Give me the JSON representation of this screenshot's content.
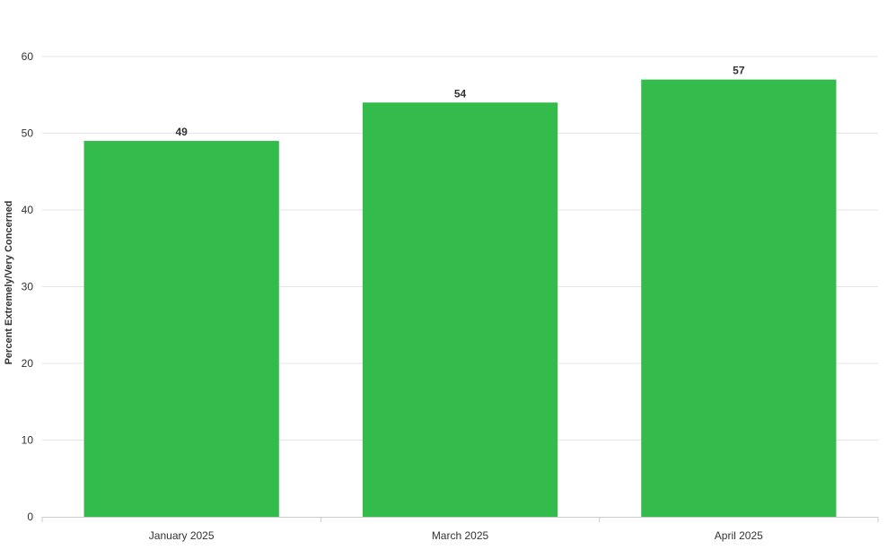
{
  "chart_data": {
    "type": "bar",
    "title": "",
    "xlabel": "",
    "ylabel": "Percent Extremely/Very Concerned",
    "categories": [
      "January 2025",
      "March 2025",
      "April 2025"
    ],
    "values": [
      49,
      54,
      57
    ],
    "ylim": [
      0,
      60
    ],
    "yticks": [
      0,
      10,
      20,
      30,
      40,
      50,
      60
    ],
    "grid": true,
    "legend": "none",
    "colors": {
      "bar": "#33bb4c",
      "grid": "#e6e6e6",
      "axis": "#cccccc",
      "text": "#333333"
    }
  }
}
